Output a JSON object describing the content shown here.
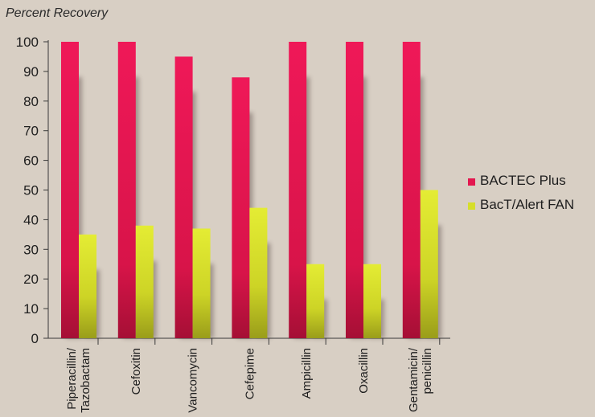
{
  "chart_data": {
    "type": "bar",
    "ylabel": "Percent Recovery",
    "xlabel": "",
    "ylim": [
      0,
      100
    ],
    "yticks": [
      0,
      10,
      20,
      30,
      40,
      50,
      60,
      70,
      80,
      90,
      100
    ],
    "grid": false,
    "legend_position": "right",
    "categories": [
      [
        "Piperacillin/",
        "Tazobactam"
      ],
      [
        "Cefoxitin"
      ],
      [
        "Vancomycin"
      ],
      [
        "Cefepime"
      ],
      [
        "Ampicillin"
      ],
      [
        "Oxacillin"
      ],
      [
        "Gentamicin/",
        "penicillin"
      ]
    ],
    "series": [
      {
        "name": "BACTEC Plus",
        "color": "#e3174f",
        "values": [
          100,
          100,
          95,
          88,
          100,
          100,
          100
        ]
      },
      {
        "name": "BacT/Alert FAN",
        "color": "#d6de2a",
        "values": [
          35,
          38,
          37,
          44,
          25,
          25,
          50
        ]
      }
    ]
  }
}
